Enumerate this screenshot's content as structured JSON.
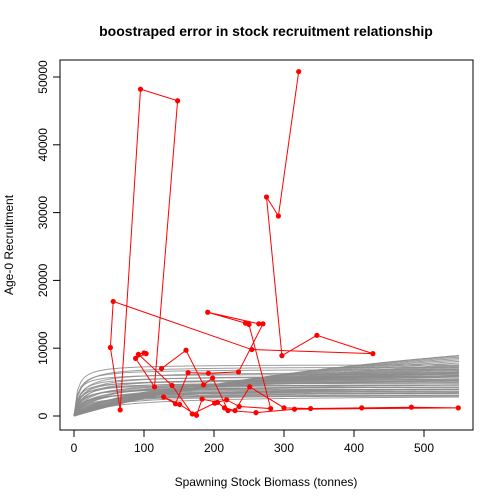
{
  "chart_data": {
    "type": "line",
    "title": "boostraped error in stock recruitment relationship",
    "xlabel": "Spawning Stock Biomass (tonnes)",
    "ylabel": "Age-0 Recruitment",
    "xlim": [
      0,
      550
    ],
    "ylim": [
      0,
      52000
    ],
    "x_ticks": [
      0,
      100,
      200,
      300,
      400,
      500
    ],
    "y_ticks": [
      0,
      10000,
      20000,
      30000,
      40000,
      50000
    ],
    "grid": false,
    "legend": "none",
    "colors": {
      "curves": "#8c8c8c",
      "observed": "#ff0000",
      "axes": "#000000"
    },
    "curve_series": {
      "description_type": "beverton-holt",
      "x_range": [
        0,
        550
      ],
      "params": [
        {
          "a": 7600,
          "b": 5
        },
        {
          "a": 7300,
          "b": 8
        },
        {
          "a": 6900,
          "b": 6
        },
        {
          "a": 6500,
          "b": 10
        },
        {
          "a": 6200,
          "b": 5
        },
        {
          "a": 6000,
          "b": 12
        },
        {
          "a": 5800,
          "b": 7
        },
        {
          "a": 5600,
          "b": 15
        },
        {
          "a": 5400,
          "b": 9
        },
        {
          "a": 5200,
          "b": 6
        },
        {
          "a": 5100,
          "b": 20
        },
        {
          "a": 5000,
          "b": 11
        },
        {
          "a": 4900,
          "b": 8
        },
        {
          "a": 4800,
          "b": 25
        },
        {
          "a": 4700,
          "b": 14
        },
        {
          "a": 4600,
          "b": 6
        },
        {
          "a": 4500,
          "b": 30
        },
        {
          "a": 4400,
          "b": 18
        },
        {
          "a": 4300,
          "b": 10
        },
        {
          "a": 4200,
          "b": 40
        },
        {
          "a": 4100,
          "b": 22
        },
        {
          "a": 4000,
          "b": 7
        },
        {
          "a": 3900,
          "b": 35
        },
        {
          "a": 3800,
          "b": 16
        },
        {
          "a": 3700,
          "b": 50
        },
        {
          "a": 3600,
          "b": 12
        },
        {
          "a": 3500,
          "b": 28
        },
        {
          "a": 3400,
          "b": 9
        },
        {
          "a": 3300,
          "b": 45
        },
        {
          "a": 3200,
          "b": 20
        },
        {
          "a": 3100,
          "b": 60
        },
        {
          "a": 3000,
          "b": 14
        },
        {
          "a": 6000,
          "b": 80
        },
        {
          "a": 6500,
          "b": 100
        },
        {
          "a": 7000,
          "b": 120
        },
        {
          "a": 7500,
          "b": 140
        },
        {
          "a": 8000,
          "b": 160
        },
        {
          "a": 8500,
          "b": 190
        },
        {
          "a": 9000,
          "b": 210
        },
        {
          "a": 9800,
          "b": 250
        },
        {
          "a": 10500,
          "b": 280
        },
        {
          "a": 11500,
          "b": 320
        },
        {
          "a": 12500,
          "b": 360
        },
        {
          "a": 13500,
          "b": 400
        },
        {
          "a": 14500,
          "b": 440
        },
        {
          "a": 15500,
          "b": 480
        },
        {
          "a": 16500,
          "b": 520
        },
        {
          "a": 17500,
          "b": 560
        },
        {
          "a": 18500,
          "b": 600
        },
        {
          "a": 19500,
          "b": 650
        },
        {
          "a": 5500,
          "b": 40
        },
        {
          "a": 5000,
          "b": 55
        },
        {
          "a": 4500,
          "b": 70
        },
        {
          "a": 6800,
          "b": 95
        },
        {
          "a": 7200,
          "b": 110
        },
        {
          "a": 8300,
          "b": 170
        },
        {
          "a": 9300,
          "b": 230
        },
        {
          "a": 10200,
          "b": 265
        },
        {
          "a": 11000,
          "b": 300
        },
        {
          "a": 12000,
          "b": 340
        }
      ]
    },
    "observed_series": {
      "x": [
        321,
        292,
        275,
        297,
        347,
        427,
        254,
        56,
        52,
        66,
        95,
        148,
        115,
        88,
        103,
        100,
        92,
        140,
        169,
        201,
        218,
        236,
        281,
        250,
        245,
        191,
        264,
        270,
        235,
        192,
        163,
        145,
        128,
        151,
        175,
        183,
        205,
        215,
        230,
        251,
        300,
        338,
        411,
        482,
        549,
        315,
        260,
        220,
        198,
        185,
        160,
        125
      ],
      "y": [
        50800,
        29500,
        32300,
        8900,
        11900,
        9200,
        9800,
        16900,
        10100,
        900,
        48200,
        46500,
        4300,
        8500,
        9200,
        9300,
        9100,
        4500,
        300,
        1900,
        2400,
        1400,
        1100,
        13500,
        13700,
        15300,
        13600,
        13600,
        6500,
        6300,
        6400,
        1800,
        2800,
        1700,
        100,
        2500,
        2000,
        1200,
        800,
        4300,
        1200,
        1100,
        1200,
        1300,
        1200,
        1000,
        500,
        800,
        5600,
        4600,
        9700,
        7000
      ]
    }
  }
}
